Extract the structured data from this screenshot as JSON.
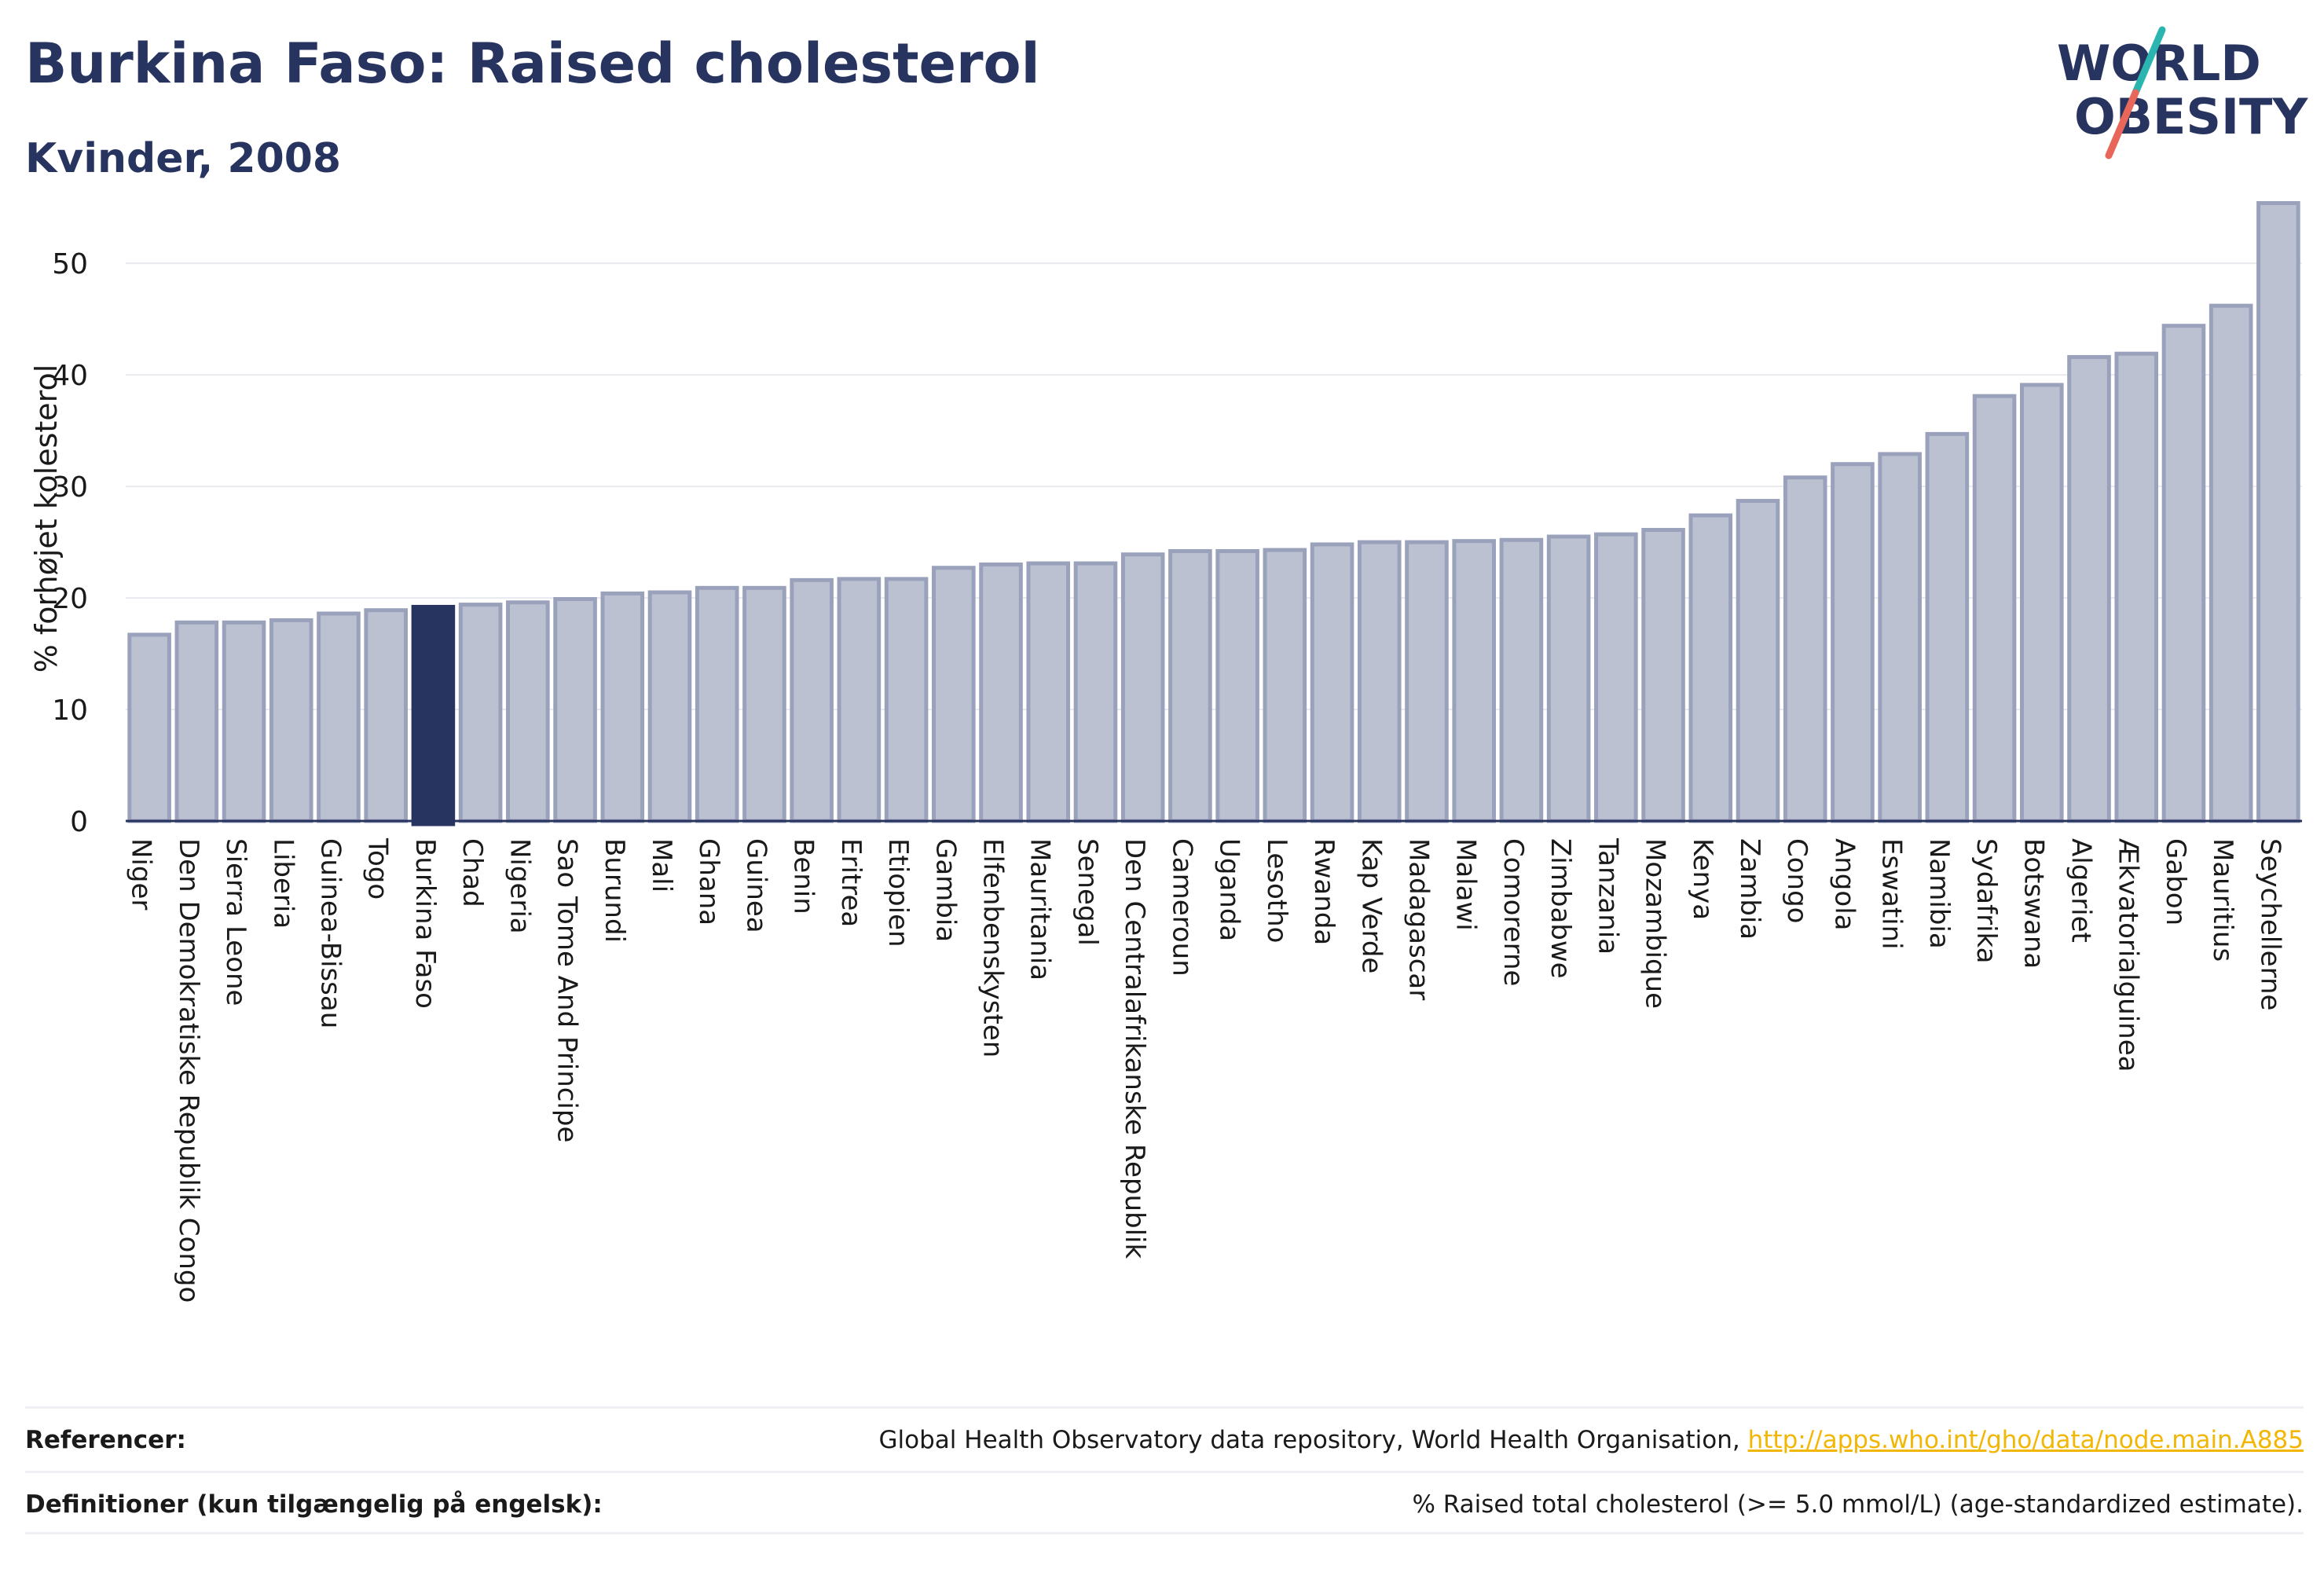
{
  "header": {
    "title": "Burkina Faso: Raised cholesterol",
    "subtitle": "Kvinder, 2008"
  },
  "logo": {
    "line1": "WORLD",
    "line2": "OBESITY"
  },
  "chart_data": {
    "type": "bar",
    "title": "Burkina Faso: Raised cholesterol",
    "subtitle": "Kvinder, 2008",
    "ylabel": "% forhøjet kolesterol",
    "xlabel": "",
    "ylim": [
      0,
      56
    ],
    "yticks": [
      0,
      10,
      20,
      30,
      40,
      50
    ],
    "grid": true,
    "highlight": "Burkina Faso",
    "colors": {
      "bar": "#bcc1d2",
      "bar_edge": "#9aa1bb",
      "highlight": "#283460"
    },
    "categories": [
      "Niger",
      "Den Demokratiske Republik Congo",
      "Sierra Leone",
      "Liberia",
      "Guinea-Bissau",
      "Togo",
      "Burkina Faso",
      "Chad",
      "Nigeria",
      "Sao Tome And Principe",
      "Burundi",
      "Mali",
      "Ghana",
      "Guinea",
      "Benin",
      "Eritrea",
      "Etiopien",
      "Gambia",
      "Elfenbenskysten",
      "Mauritania",
      "Senegal",
      "Den Centralafrikanske Republik",
      "Cameroun",
      "Uganda",
      "Lesotho",
      "Rwanda",
      "Kap Verde",
      "Madagascar",
      "Malawi",
      "Comorerne",
      "Zimbabwe",
      "Tanzania",
      "Mozambique",
      "Kenya",
      "Zambia",
      "Congo",
      "Angola",
      "Eswatini",
      "Namibia",
      "Sydafrika",
      "Botswana",
      "Algeriet",
      "Ækvatorialguinea",
      "Gabon",
      "Mauritius",
      "Seychellerne"
    ],
    "values": [
      16.7,
      17.8,
      17.8,
      18.0,
      18.6,
      18.9,
      19.2,
      19.4,
      19.6,
      19.9,
      20.4,
      20.5,
      20.9,
      20.9,
      21.6,
      21.7,
      21.7,
      22.7,
      23.0,
      23.1,
      23.1,
      23.9,
      24.2,
      24.2,
      24.3,
      24.8,
      25.0,
      25.0,
      25.1,
      25.2,
      25.5,
      25.7,
      26.1,
      27.4,
      28.7,
      30.8,
      32.0,
      32.9,
      34.7,
      38.1,
      39.1,
      41.6,
      41.9,
      44.4,
      46.2,
      55.4
    ]
  },
  "footer": {
    "references_label": "Referencer:",
    "references_text": "Global Health Observatory data repository, World Health Organisation, ",
    "references_link": "http://apps.who.int/gho/data/node.main.A885",
    "definitions_label": "Definitioner (kun tilgængelig på engelsk):",
    "definitions_text": "% Raised total cholesterol (>= 5.0 mmol/L) (age-standardized estimate)."
  }
}
